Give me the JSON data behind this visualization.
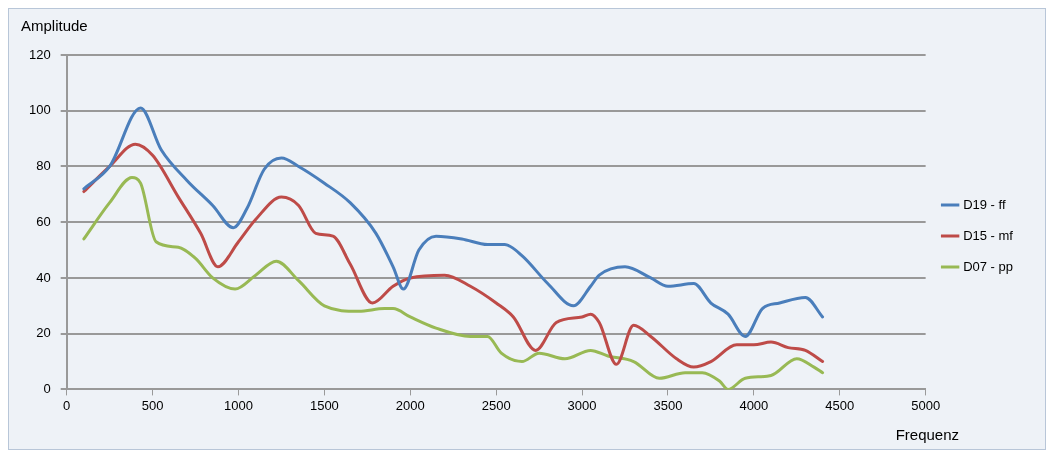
{
  "chart_data": {
    "type": "line",
    "xlabel": "Frequenz",
    "ylabel": "Amplitude",
    "xlim": [
      0,
      5000
    ],
    "xticks": [
      0,
      500,
      1000,
      1500,
      2000,
      2500,
      3000,
      3500,
      4000,
      4500,
      5000
    ],
    "ylim": [
      0,
      120
    ],
    "yticks": [
      0,
      20,
      40,
      60,
      80,
      100,
      120
    ],
    "grid": "y",
    "legend": "right",
    "marker": "none",
    "line_style": "solid",
    "series": [
      {
        "name": "D19 - ff",
        "color": "#4a7ebb",
        "x": [
          100,
          250,
          430,
          550,
          700,
          850,
          970,
          1050,
          1150,
          1250,
          1350,
          1500,
          1650,
          1800,
          1900,
          1960,
          2050,
          2150,
          2300,
          2450,
          2550,
          2650,
          2800,
          2950,
          3050,
          3100,
          3250,
          3400,
          3500,
          3650,
          3750,
          3850,
          3950,
          4050,
          4150,
          4300,
          4400
        ],
        "values": [
          72,
          80,
          101,
          86,
          75,
          66,
          58,
          65,
          79,
          83,
          80,
          74,
          67,
          56,
          44,
          36,
          50,
          55,
          54,
          52,
          52,
          48,
          38,
          30,
          37,
          41,
          44,
          40,
          37,
          38,
          31,
          27,
          19,
          29,
          31,
          33,
          26
        ]
      },
      {
        "name": "D15 - mf",
        "color": "#be4b48",
        "x": [
          100,
          250,
          400,
          500,
          650,
          780,
          880,
          1000,
          1100,
          1250,
          1350,
          1450,
          1550,
          1650,
          1780,
          1900,
          2000,
          2200,
          2350,
          2500,
          2600,
          2730,
          2850,
          3000,
          3050,
          3100,
          3200,
          3300,
          3400,
          3550,
          3650,
          3750,
          3900,
          4000,
          4100,
          4200,
          4300,
          4400
        ],
        "values": [
          71,
          80,
          88,
          84,
          69,
          56,
          44,
          53,
          61,
          69,
          66,
          56,
          55,
          45,
          31,
          37,
          40,
          41,
          37,
          31,
          26,
          14,
          24,
          26,
          27,
          24,
          9,
          23,
          19,
          11,
          8,
          10,
          16,
          16,
          17,
          15,
          14,
          10
        ]
      },
      {
        "name": "D07 - pp",
        "color": "#98b954",
        "x": [
          100,
          250,
          380,
          430,
          520,
          650,
          750,
          850,
          980,
          1100,
          1220,
          1350,
          1500,
          1700,
          1850,
          1900,
          2000,
          2150,
          2350,
          2450,
          2530,
          2650,
          2750,
          2900,
          3050,
          3150,
          3300,
          3450,
          3600,
          3700,
          3800,
          3850,
          3950,
          4100,
          4250,
          4350,
          4400
        ],
        "values": [
          54,
          67,
          76,
          74,
          53,
          51,
          47,
          40,
          36,
          41,
          46,
          39,
          30,
          28,
          29,
          29,
          26,
          22,
          19,
          19,
          13,
          10,
          13,
          11,
          14,
          12,
          10,
          4,
          6,
          6,
          3,
          0,
          4,
          5,
          11,
          8,
          6
        ]
      }
    ]
  }
}
